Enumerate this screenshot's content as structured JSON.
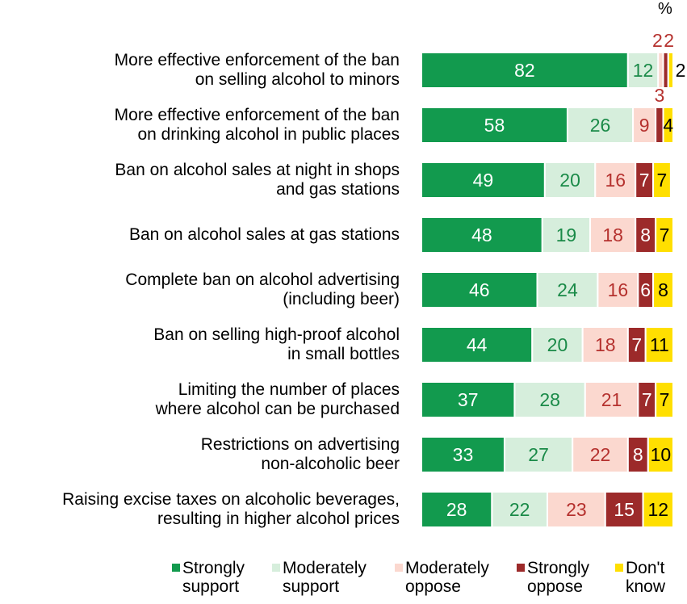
{
  "chart_data": {
    "type": "stacked-bar",
    "orientation": "horizontal",
    "unit": "%",
    "categories": [
      "More effective enforcement of the ban\non selling alcohol to minors",
      "More effective enforcement of the ban\non drinking alcohol in public places",
      "Ban on alcohol sales at night in shops\nand gas stations",
      "Ban on alcohol sales at gas stations",
      "Complete ban on alcohol advertising\n(including beer)",
      "Ban on selling high-proof alcohol\nin small bottles",
      "Limiting the number of places\nwhere alcohol can be purchased",
      "Restrictions on advertising\nnon-alcoholic beer",
      "Raising excise taxes on alcoholic beverages,\nresulting in higher alcohol prices"
    ],
    "series": [
      {
        "name": "Strongly support",
        "color": "#129a4e",
        "values": [
          82,
          58,
          49,
          48,
          46,
          44,
          37,
          33,
          28
        ]
      },
      {
        "name": "Moderately support",
        "color": "#d6eedc",
        "values": [
          12,
          26,
          20,
          19,
          24,
          20,
          28,
          27,
          22
        ]
      },
      {
        "name": "Moderately oppose",
        "color": "#fbd8cf",
        "values": [
          2,
          9,
          16,
          18,
          16,
          18,
          21,
          22,
          23
        ]
      },
      {
        "name": "Strongly oppose",
        "color": "#9c2a2a",
        "values": [
          2,
          3,
          7,
          8,
          6,
          7,
          7,
          8,
          15
        ]
      },
      {
        "name": "Don't know",
        "color": "#ffdf00",
        "values": [
          2,
          4,
          7,
          7,
          8,
          11,
          7,
          10,
          12
        ]
      }
    ],
    "xlim": [
      0,
      100
    ],
    "legend": "bottom"
  }
}
